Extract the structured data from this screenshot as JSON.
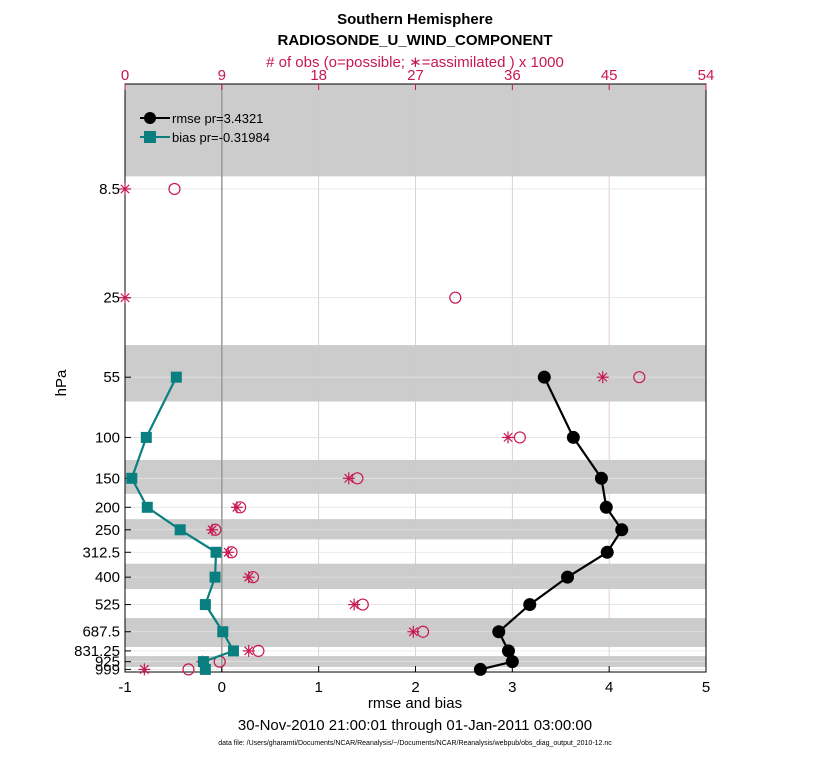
{
  "chart_data": {
    "type": "line",
    "title": "Southern Hemisphere",
    "subtitle": "RADIOSONDE_U_WIND_COMPONENT",
    "top_axis_label": "# of obs (o=possible; ∗=assimilated ) x 1000",
    "xlabel": "rmse and bias",
    "ylabel": "hPa",
    "date_range": "30-Nov-2010 21:00:01 through 01-Jan-2011 03:00:00",
    "footnote": "data file: /Users/gharamti/Documents/NCAR/Reanalysis/~/Documents/NCAR/Reanalysis/webpub/obs_diag_output_2010-12.nc",
    "xlim": [
      -1,
      5
    ],
    "x_ticks": [
      "-1",
      "0",
      "1",
      "2",
      "3",
      "4",
      "5"
    ],
    "top_xlim": [
      0,
      54
    ],
    "top_ticks": [
      "0",
      "9",
      "18",
      "27",
      "36",
      "45",
      "54"
    ],
    "y_scale": "log",
    "ylim": [
      1025,
      3
    ],
    "y_ticks": [
      "8.5",
      "25",
      "55",
      "100",
      "150",
      "200",
      "250",
      "312.5",
      "400",
      "525",
      "687.5",
      "831.25",
      "925",
      "999"
    ],
    "levels": [
      8.5,
      25,
      55,
      100,
      150,
      200,
      250,
      312.5,
      400,
      525,
      687.5,
      831.25,
      925,
      999
    ],
    "grey_bands": [
      [
        3,
        7.5
      ],
      [
        40,
        70
      ],
      [
        125,
        175
      ],
      [
        225,
        275
      ],
      [
        350,
        450
      ],
      [
        600,
        800
      ],
      [
        875,
        975
      ]
    ],
    "legend_position": "top-left",
    "grid": true,
    "colors": {
      "rmse": "#000000",
      "bias": "#0a7f7f",
      "obs": "#c8184f",
      "band": "#cccccc",
      "grid": "#d9c2cc"
    },
    "series": [
      {
        "name": "rmse pr=3.4321",
        "key": "rmse",
        "levels": [
          55,
          100,
          150,
          200,
          250,
          312.5,
          400,
          525,
          687.5,
          831.25,
          925,
          999
        ],
        "values": [
          3.33,
          3.63,
          3.92,
          3.97,
          4.13,
          3.98,
          3.57,
          3.18,
          2.86,
          2.96,
          3.0,
          2.67
        ]
      },
      {
        "name": "bias pr=-0.31984",
        "key": "bias",
        "levels": [
          55,
          100,
          150,
          200,
          250,
          312.5,
          400,
          525,
          687.5,
          831.25,
          925,
          999
        ],
        "values": [
          -0.47,
          -0.78,
          -0.93,
          -0.77,
          -0.43,
          -0.06,
          -0.07,
          -0.17,
          0.01,
          0.12,
          -0.19,
          -0.17
        ]
      }
    ],
    "obs_possible": {
      "levels": [
        8.5,
        25,
        55,
        100,
        150,
        200,
        250,
        312.5,
        400,
        525,
        687.5,
        831.25,
        925,
        999
      ],
      "values": [
        4.6,
        30.7,
        47.8,
        36.7,
        21.6,
        10.7,
        8.4,
        9.9,
        11.9,
        22.1,
        27.7,
        12.4,
        8.8,
        5.9
      ]
    },
    "obs_assimilated": {
      "levels": [
        8.5,
        25,
        55,
        100,
        150,
        200,
        250,
        312.5,
        400,
        525,
        687.5,
        831.25,
        925,
        999
      ],
      "values": [
        0.0,
        0.0,
        44.4,
        35.6,
        20.8,
        10.4,
        8.1,
        9.6,
        11.5,
        21.3,
        26.8,
        11.5,
        7.2,
        1.8
      ]
    }
  }
}
